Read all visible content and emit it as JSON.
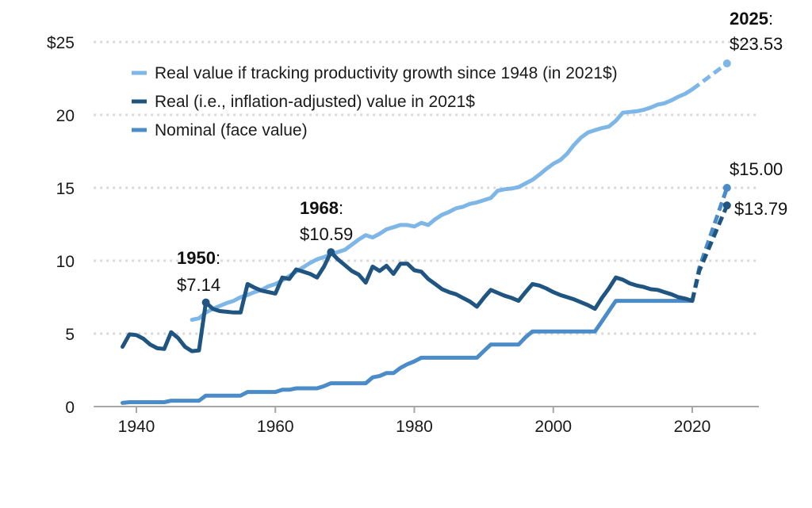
{
  "chart_data": {
    "type": "line",
    "title": "",
    "xlabel": "",
    "ylabel": "",
    "xlim": [
      1935,
      2029
    ],
    "ylim": [
      0,
      25
    ],
    "x_ticks": [
      1940,
      1960,
      1980,
      2000,
      2020
    ],
    "x_tick_labels": [
      "1940",
      "1960",
      "1980",
      "2000",
      "2020"
    ],
    "y_ticks": [
      0,
      5,
      10,
      15,
      20,
      25
    ],
    "y_tick_labels": [
      "0",
      "5",
      "10",
      "15",
      "20",
      "$25"
    ],
    "grid": "horizontal-dotted",
    "legend_position": "top-left",
    "series": [
      {
        "name": "Real value if tracking productivity growth since 1948 (in 2021$)",
        "color": "#7fb6e8",
        "x": [
          1948,
          1949,
          1950,
          1951,
          1952,
          1953,
          1954,
          1955,
          1956,
          1957,
          1958,
          1959,
          1960,
          1961,
          1962,
          1963,
          1964,
          1965,
          1966,
          1967,
          1968,
          1969,
          1970,
          1971,
          1972,
          1973,
          1974,
          1975,
          1976,
          1977,
          1978,
          1979,
          1980,
          1981,
          1982,
          1983,
          1984,
          1985,
          1986,
          1987,
          1988,
          1989,
          1990,
          1991,
          1992,
          1993,
          1994,
          1995,
          1996,
          1997,
          1998,
          1999,
          2000,
          2001,
          2002,
          2003,
          2004,
          2005,
          2006,
          2007,
          2008,
          2009,
          2010,
          2011,
          2012,
          2013,
          2014,
          2015,
          2016,
          2017,
          2018,
          2019,
          2020
        ],
        "values": [
          5.95,
          6.05,
          6.45,
          6.7,
          6.9,
          7.1,
          7.25,
          7.5,
          7.65,
          7.85,
          8.0,
          8.25,
          8.4,
          8.65,
          8.95,
          9.25,
          9.55,
          9.85,
          10.1,
          10.25,
          10.45,
          10.6,
          10.75,
          11.1,
          11.45,
          11.75,
          11.6,
          11.85,
          12.15,
          12.3,
          12.45,
          12.45,
          12.35,
          12.6,
          12.45,
          12.85,
          13.15,
          13.35,
          13.6,
          13.7,
          13.9,
          14.0,
          14.15,
          14.3,
          14.8,
          14.9,
          14.95,
          15.05,
          15.3,
          15.55,
          15.9,
          16.3,
          16.65,
          16.9,
          17.35,
          17.95,
          18.45,
          18.8,
          18.95,
          19.1,
          19.2,
          19.6,
          20.15,
          20.2,
          20.25,
          20.35,
          20.5,
          20.7,
          20.8,
          21.0,
          21.25,
          21.45,
          21.75
        ],
        "projection": {
          "x": [
            2020,
            2025
          ],
          "values": [
            21.75,
            23.53
          ],
          "style": "dashed"
        }
      },
      {
        "name": "Real (i.e., inflation-adjusted) value in 2021$",
        "color": "#1f5580",
        "x": [
          1938,
          1939,
          1940,
          1941,
          1942,
          1943,
          1944,
          1945,
          1946,
          1947,
          1948,
          1949,
          1950,
          1951,
          1952,
          1953,
          1954,
          1955,
          1956,
          1957,
          1958,
          1959,
          1960,
          1961,
          1962,
          1963,
          1964,
          1965,
          1966,
          1967,
          1968,
          1969,
          1970,
          1971,
          1972,
          1973,
          1974,
          1975,
          1976,
          1977,
          1978,
          1979,
          1980,
          1981,
          1982,
          1983,
          1984,
          1985,
          1986,
          1987,
          1988,
          1989,
          1990,
          1991,
          1992,
          1993,
          1994,
          1995,
          1996,
          1997,
          1998,
          1999,
          2000,
          2001,
          2002,
          2003,
          2004,
          2005,
          2006,
          2007,
          2008,
          2009,
          2010,
          2011,
          2012,
          2013,
          2014,
          2015,
          2016,
          2017,
          2018,
          2019,
          2020
        ],
        "values": [
          4.1,
          4.95,
          4.9,
          4.65,
          4.25,
          4.0,
          3.95,
          5.1,
          4.7,
          4.1,
          3.8,
          3.85,
          7.14,
          6.7,
          6.55,
          6.5,
          6.45,
          6.45,
          8.4,
          8.15,
          7.95,
          7.85,
          7.75,
          8.85,
          8.75,
          9.4,
          9.25,
          9.1,
          8.85,
          9.6,
          10.59,
          10.1,
          9.7,
          9.3,
          9.05,
          8.5,
          9.6,
          9.3,
          9.65,
          9.1,
          9.8,
          9.8,
          9.35,
          9.25,
          8.75,
          8.4,
          8.05,
          7.85,
          7.7,
          7.45,
          7.2,
          6.85,
          7.45,
          8.0,
          7.8,
          7.6,
          7.45,
          7.25,
          7.85,
          8.4,
          8.3,
          8.1,
          7.85,
          7.65,
          7.5,
          7.35,
          7.15,
          6.95,
          6.7,
          7.45,
          8.1,
          8.85,
          8.7,
          8.45,
          8.3,
          8.2,
          8.05,
          8.0,
          7.85,
          7.7,
          7.5,
          7.4,
          7.25
        ],
        "projection": {
          "x": [
            2020,
            2021,
            2025
          ],
          "values": [
            7.25,
            9.3,
            13.79
          ],
          "style": "dashed"
        }
      },
      {
        "name": "Nominal (face value)",
        "color": "#4a8bc8",
        "x": [
          1938,
          1939,
          1940,
          1941,
          1942,
          1943,
          1944,
          1945,
          1946,
          1947,
          1948,
          1949,
          1950,
          1951,
          1952,
          1953,
          1954,
          1955,
          1956,
          1957,
          1958,
          1959,
          1960,
          1961,
          1962,
          1963,
          1964,
          1965,
          1966,
          1967,
          1968,
          1969,
          1970,
          1971,
          1972,
          1973,
          1974,
          1975,
          1976,
          1977,
          1978,
          1979,
          1980,
          1981,
          1982,
          1983,
          1984,
          1985,
          1986,
          1987,
          1988,
          1989,
          1990,
          1991,
          1992,
          1993,
          1994,
          1995,
          1996,
          1997,
          1998,
          1999,
          2000,
          2001,
          2002,
          2003,
          2004,
          2005,
          2006,
          2007,
          2008,
          2009,
          2010,
          2011,
          2012,
          2013,
          2014,
          2015,
          2016,
          2017,
          2018,
          2019,
          2020
        ],
        "values": [
          0.25,
          0.3,
          0.3,
          0.3,
          0.3,
          0.3,
          0.3,
          0.4,
          0.4,
          0.4,
          0.4,
          0.4,
          0.75,
          0.75,
          0.75,
          0.75,
          0.75,
          0.75,
          1.0,
          1.0,
          1.0,
          1.0,
          1.0,
          1.15,
          1.15,
          1.25,
          1.25,
          1.25,
          1.25,
          1.4,
          1.6,
          1.6,
          1.6,
          1.6,
          1.6,
          1.6,
          2.0,
          2.1,
          2.3,
          2.3,
          2.65,
          2.9,
          3.1,
          3.35,
          3.35,
          3.35,
          3.35,
          3.35,
          3.35,
          3.35,
          3.35,
          3.35,
          3.8,
          4.25,
          4.25,
          4.25,
          4.25,
          4.25,
          4.75,
          5.15,
          5.15,
          5.15,
          5.15,
          5.15,
          5.15,
          5.15,
          5.15,
          5.15,
          5.15,
          5.85,
          6.55,
          7.25,
          7.25,
          7.25,
          7.25,
          7.25,
          7.25,
          7.25,
          7.25,
          7.25,
          7.25,
          7.25,
          7.25
        ],
        "projection": {
          "x": [
            2020,
            2021,
            2025
          ],
          "values": [
            7.25,
            9.5,
            15.0
          ],
          "style": "dashed"
        }
      }
    ],
    "annotations": [
      {
        "id": "a1950",
        "year_label": "1950",
        "value_label": "$7.14",
        "series": 1,
        "x": 1950,
        "y": 7.14
      },
      {
        "id": "a1968",
        "year_label": "1968",
        "value_label": "$10.59",
        "series": 1,
        "x": 1968,
        "y": 10.59
      },
      {
        "id": "a2025",
        "year_label": "2025",
        "value_label": "$23.53",
        "series": 0,
        "x": 2025,
        "y": 23.53
      },
      {
        "id": "a2025n",
        "year_label": "",
        "value_label": "$15.00",
        "series": 2,
        "x": 2025,
        "y": 15.0
      },
      {
        "id": "a2025r",
        "year_label": "",
        "value_label": "$13.79",
        "series": 1,
        "x": 2025,
        "y": 13.79
      }
    ]
  }
}
